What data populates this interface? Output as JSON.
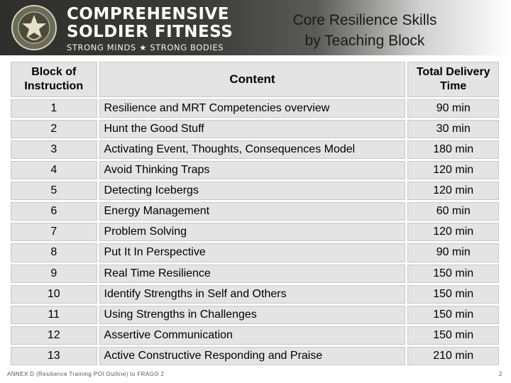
{
  "header": {
    "brand_line1": "COMPREHENSIVE",
    "brand_line2": "SOLDIER FITNESS",
    "brand_tagline": "STRONG MINDS ★ STRONG BODIES",
    "title_line1": "Core Resilience Skills",
    "title_line2": "by Teaching Block",
    "seal_icon": "army-seal-icon",
    "colors": {
      "banner_dark": "#3c3c3a",
      "table_cell": "#e4e4e4"
    }
  },
  "table": {
    "headers": [
      "Block of Instruction",
      "Content",
      "Total Delivery Time"
    ],
    "rows": [
      {
        "block": "1",
        "content": "Resilience  and MRT Competencies overview",
        "time": "90 min"
      },
      {
        "block": "2",
        "content": "Hunt the Good Stuff",
        "time": "30 min"
      },
      {
        "block": "3",
        "content": "Activating Event, Thoughts, Consequences Model",
        "time": "180 min"
      },
      {
        "block": "4",
        "content": "Avoid Thinking Traps",
        "time": "120 min"
      },
      {
        "block": "5",
        "content": "Detecting Icebergs",
        "time": "120 min"
      },
      {
        "block": "6",
        "content": "Energy Management",
        "time": "60 min"
      },
      {
        "block": "7",
        "content": "Problem Solving",
        "time": "120 min"
      },
      {
        "block": "8",
        "content": "Put It In Perspective",
        "time": "90 min"
      },
      {
        "block": "9",
        "content": "Real Time Resilience",
        "time": "150 min"
      },
      {
        "block": "10",
        "content": "Identify Strengths in Self and Others",
        "time": "150 min"
      },
      {
        "block": "11",
        "content": "Using Strengths in Challenges",
        "time": "150 min"
      },
      {
        "block": "12",
        "content": "Assertive Communication",
        "time": "150 min"
      },
      {
        "block": "13",
        "content": "Active Constructive Responding and Praise",
        "time": "210 min"
      }
    ]
  },
  "footer": {
    "annex": "ANNEX D (Resilience Training POI Outline) to FRAGO 2",
    "page_number": "2"
  }
}
